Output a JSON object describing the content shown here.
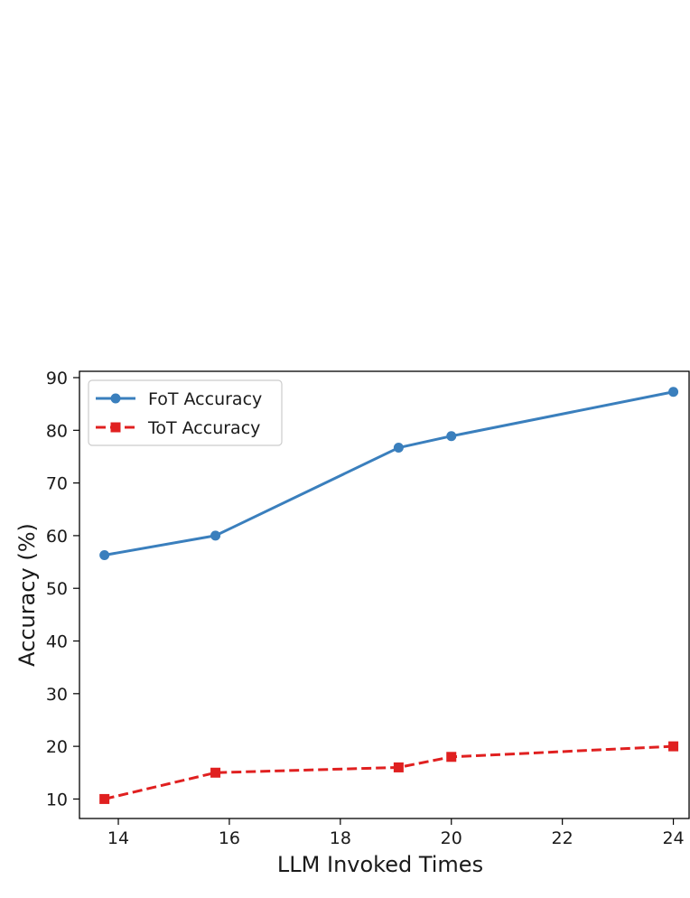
{
  "chart_data": {
    "type": "line",
    "xlabel": "LLM Invoked Times",
    "ylabel": "Accuracy (%)",
    "xlim": [
      13.3,
      24.3
    ],
    "ylim": [
      6.3,
      91.2
    ],
    "xticks": [
      14,
      16,
      18,
      20,
      22,
      24
    ],
    "yticks": [
      10,
      20,
      30,
      40,
      50,
      60,
      70,
      80,
      90
    ],
    "grid": false,
    "legend_position": "top-left",
    "series": [
      {
        "name": "FoT Accuracy",
        "color": "#3a7fbd",
        "line_style": "solid",
        "marker": "circle",
        "x": [
          13.75,
          15.75,
          19.05,
          20.0,
          24.0
        ],
        "y": [
          56.3,
          60.0,
          76.7,
          78.9,
          87.3
        ]
      },
      {
        "name": "ToT Accuracy",
        "color": "#e02020",
        "line_style": "dashed",
        "marker": "square",
        "x": [
          13.75,
          15.75,
          19.05,
          20.0,
          24.0
        ],
        "y": [
          10.0,
          15.0,
          16.0,
          18.0,
          20.0
        ]
      }
    ]
  }
}
